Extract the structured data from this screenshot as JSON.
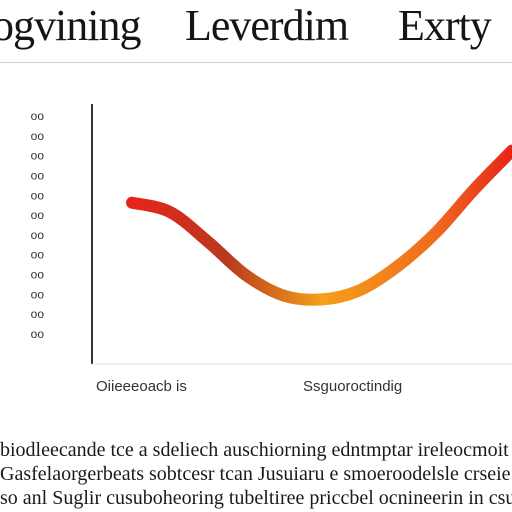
{
  "title": [
    "ogvining",
    "Leverdim",
    "Exrty"
  ],
  "chart_data": {
    "type": "line",
    "title": "ogvining Leverdim Exrty",
    "y_tick_labels": [
      "oo",
      "oo",
      "oo",
      "oo",
      "oo",
      "oo",
      "oo",
      "oo",
      "oo",
      "oo",
      "oo",
      "oo"
    ],
    "x_tick_labels": [
      "",
      "",
      "",
      ""
    ],
    "xlabel": "",
    "ylabel": "",
    "series": [
      {
        "x": [
          0,
          1,
          2,
          3,
          4,
          5,
          6,
          7,
          8,
          9,
          10
        ],
        "values": [
          6.2,
          5.7,
          4.1,
          2.3,
          1.2,
          1.0,
          1.5,
          2.8,
          4.6,
          6.9,
          9.0
        ],
        "colors": [
          "#e8231a",
          "#f5a01a",
          "#b83a1e"
        ]
      }
    ],
    "xlim": [
      0,
      10
    ],
    "ylim": [
      0,
      10
    ],
    "grid": false
  },
  "axis_caption_left": "Oiieeeoacb is",
  "axis_caption_right": "Ssguoroctindig",
  "body_lines": [
    "biodleecande tce a sdeliech auschiorning edntmptar ireleocmoit",
    "Gasfelaorgerbeats sobtcesr tcan Jusuiaru e smoeroodelsle crseie",
    "so anl Suglir cusuboheoring tubeltiree priccbel ocnineerin in csusr"
  ]
}
